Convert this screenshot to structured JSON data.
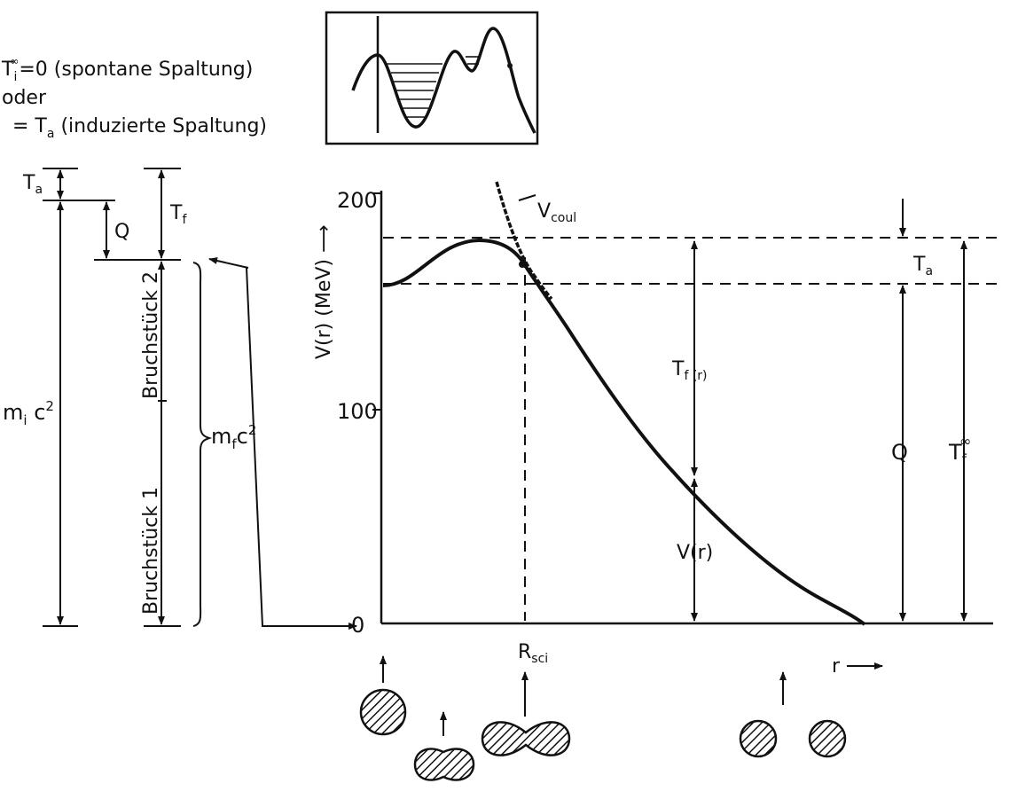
{
  "header": {
    "line1_a": "T",
    "line1_sub": "i",
    "line1_sup": "∞",
    "line1_b": "=0 (spontane Spaltung)",
    "line2": "oder",
    "line3_a": "= T",
    "line3_sub": "a",
    "line3_b": " (induzierte Spaltung)"
  },
  "left_scale": {
    "Ta_main": "T",
    "Ta_sub": "a",
    "Q": "Q",
    "Tf_main": "T",
    "Tf_sub": "f",
    "mi_main": "m",
    "mi_sub": "i",
    "mi_rest": " c",
    "mi_sup": "2",
    "mf_main": "m",
    "mf_sub": "f",
    "mf_rest": "c",
    "mf_sup": "2",
    "fragment2": "Bruchstück 2",
    "fragment1": "Bruchstück 1"
  },
  "plot": {
    "y_axis_label": "V(r) (MeV) ⟶",
    "y_ticks": [
      "200",
      "100",
      "0"
    ],
    "vcoul_main": "V",
    "vcoul_sub": "coul",
    "Ta_main": "T",
    "Ta_sub": "a",
    "Tfr": "T",
    "Tfr_sub": "f (r)",
    "Vr": "V(r)",
    "Q": "Q",
    "Tfinf_main": "T",
    "Tfinf_sub": "f",
    "Tfinf_sup": "∞",
    "rsci_main": "R",
    "rsci_sub": "sci",
    "r_label": "r"
  }
}
